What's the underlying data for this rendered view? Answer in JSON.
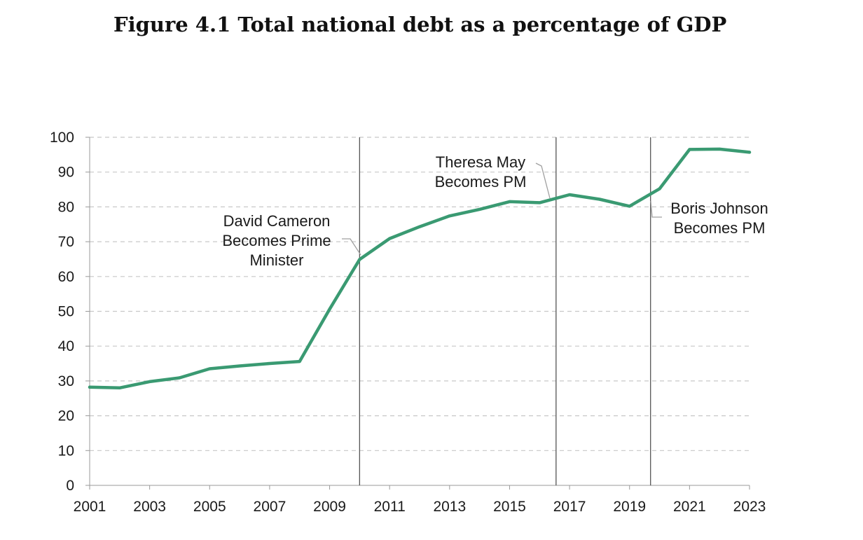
{
  "title": "Figure 4.1 Total national debt as a percentage of GDP",
  "colors": {
    "line": "#3a9a72",
    "grid": "#c8c8c8",
    "event_line": "#555555",
    "text": "#1a1a1a"
  },
  "chart_data": {
    "type": "line",
    "title": "Figure 4.1 Total national debt as a percentage of GDP",
    "xlabel": "",
    "ylabel": "",
    "xlim": [
      2001,
      2023
    ],
    "ylim": [
      0,
      100
    ],
    "x_ticks": [
      "2001",
      "2003",
      "2005",
      "2007",
      "2009",
      "2011",
      "2013",
      "2015",
      "2017",
      "2019",
      "2021",
      "2023"
    ],
    "y_ticks": [
      "0",
      "10",
      "20",
      "30",
      "40",
      "50",
      "60",
      "70",
      "80",
      "90",
      "100"
    ],
    "grid": "horizontal-dashed",
    "series": [
      {
        "name": "Total national debt (% of GDP)",
        "x": [
          2001,
          2002,
          2003,
          2004,
          2005,
          2006,
          2007,
          2008,
          2009,
          2010,
          2011,
          2012,
          2013,
          2014,
          2015,
          2016,
          2017,
          2018,
          2019,
          2020,
          2021,
          2022,
          2023
        ],
        "values": [
          28.2,
          28.0,
          29.8,
          30.9,
          33.5,
          34.3,
          35.0,
          35.6,
          50.6,
          64.9,
          70.9,
          74.3,
          77.4,
          79.3,
          81.5,
          81.2,
          83.5,
          82.2,
          80.2,
          85.2,
          96.5,
          96.6,
          95.7
        ]
      }
    ],
    "events": [
      {
        "label_lines": [
          "David Cameron",
          "Becomes Prime",
          "Minister"
        ],
        "year": 2010.0
      },
      {
        "label_lines": [
          "Theresa May",
          "Becomes PM"
        ],
        "year": 2016.55
      },
      {
        "label_lines": [
          "Boris Johnson",
          "Becomes PM"
        ],
        "year": 2019.7
      }
    ]
  }
}
